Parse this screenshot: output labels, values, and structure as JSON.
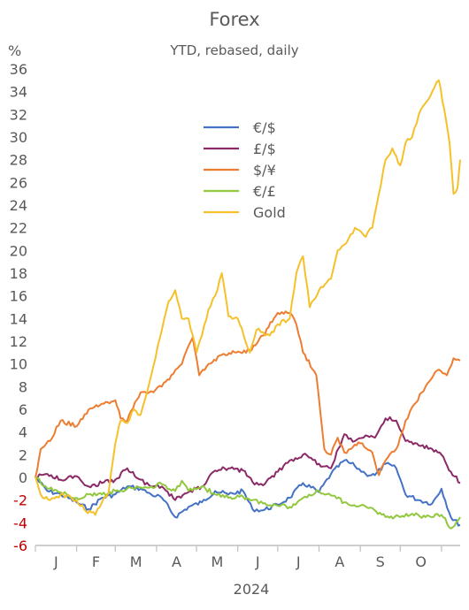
{
  "chart_data": {
    "type": "line",
    "title": "Forex",
    "subtitle": "YTD, rebased, daily",
    "ylabel": "%",
    "xlabel": "2024",
    "ylim": [
      -6,
      36
    ],
    "yticks": [
      -6,
      -4,
      -2,
      0,
      2,
      4,
      6,
      8,
      10,
      12,
      14,
      16,
      18,
      20,
      22,
      24,
      26,
      28,
      30,
      32,
      34,
      36
    ],
    "month_labels": [
      "J",
      "F",
      "M",
      "A",
      "M",
      "J",
      "J",
      "A",
      "S",
      "O"
    ],
    "x_start": "2024-01-01",
    "x_end": "2024-11-15",
    "legend_position": "top-center",
    "grid": false,
    "series": [
      {
        "name": "€/$",
        "color": "#4472c4",
        "points": [
          [
            "2024-01-01",
            0
          ],
          [
            "2024-01-10",
            -1.2
          ],
          [
            "2024-01-20",
            -1.5
          ],
          [
            "2024-02-01",
            -2.2
          ],
          [
            "2024-02-10",
            -2.8
          ],
          [
            "2024-02-20",
            -1.8
          ],
          [
            "2024-03-01",
            -1.5
          ],
          [
            "2024-03-10",
            -0.8
          ],
          [
            "2024-03-20",
            -1.0
          ],
          [
            "2024-03-28",
            -1.5
          ],
          [
            "2024-04-05",
            -1.8
          ],
          [
            "2024-04-15",
            -3.5
          ],
          [
            "2024-04-25",
            -2.6
          ],
          [
            "2024-05-05",
            -2.2
          ],
          [
            "2024-05-15",
            -1.2
          ],
          [
            "2024-05-25",
            -1.5
          ],
          [
            "2024-06-05",
            -1.2
          ],
          [
            "2024-06-12",
            -2.8
          ],
          [
            "2024-06-20",
            -2.9
          ],
          [
            "2024-07-01",
            -2.4
          ],
          [
            "2024-07-10",
            -1.8
          ],
          [
            "2024-07-20",
            -0.5
          ],
          [
            "2024-08-01",
            -1.3
          ],
          [
            "2024-08-10",
            0.3
          ],
          [
            "2024-08-20",
            1.5
          ],
          [
            "2024-08-28",
            1.0
          ],
          [
            "2024-09-05",
            0.3
          ],
          [
            "2024-09-12",
            0.2
          ],
          [
            "2024-09-20",
            1.2
          ],
          [
            "2024-09-28",
            0.8
          ],
          [
            "2024-10-05",
            -1.5
          ],
          [
            "2024-10-15",
            -2.0
          ],
          [
            "2024-10-25",
            -2.3
          ],
          [
            "2024-11-01",
            -1.0
          ],
          [
            "2024-11-08",
            -3.5
          ],
          [
            "2024-11-15",
            -4.2
          ]
        ]
      },
      {
        "name": "£/$",
        "color": "#8b2a67",
        "points": [
          [
            "2024-01-01",
            0
          ],
          [
            "2024-01-10",
            0.3
          ],
          [
            "2024-01-20",
            -0.2
          ],
          [
            "2024-02-01",
            0.1
          ],
          [
            "2024-02-10",
            -0.8
          ],
          [
            "2024-02-20",
            -0.5
          ],
          [
            "2024-03-01",
            -0.2
          ],
          [
            "2024-03-10",
            0.8
          ],
          [
            "2024-03-20",
            -0.2
          ],
          [
            "2024-03-28",
            -0.8
          ],
          [
            "2024-04-05",
            -0.8
          ],
          [
            "2024-04-15",
            -2.0
          ],
          [
            "2024-04-25",
            -1.3
          ],
          [
            "2024-05-05",
            -0.8
          ],
          [
            "2024-05-15",
            0.6
          ],
          [
            "2024-05-25",
            0.8
          ],
          [
            "2024-06-05",
            0.6
          ],
          [
            "2024-06-12",
            -0.4
          ],
          [
            "2024-06-20",
            -0.7
          ],
          [
            "2024-07-01",
            0.5
          ],
          [
            "2024-07-10",
            1.5
          ],
          [
            "2024-07-20",
            2.0
          ],
          [
            "2024-08-01",
            1.2
          ],
          [
            "2024-08-10",
            0.8
          ],
          [
            "2024-08-20",
            3.8
          ],
          [
            "2024-08-28",
            3.2
          ],
          [
            "2024-09-05",
            3.7
          ],
          [
            "2024-09-12",
            3.5
          ],
          [
            "2024-09-20",
            5.2
          ],
          [
            "2024-09-28",
            5.0
          ],
          [
            "2024-10-05",
            3.2
          ],
          [
            "2024-10-15",
            2.8
          ],
          [
            "2024-10-25",
            2.5
          ],
          [
            "2024-11-01",
            2.0
          ],
          [
            "2024-11-08",
            0.5
          ],
          [
            "2024-11-15",
            -0.5
          ]
        ]
      },
      {
        "name": "$/¥",
        "color": "#ed7d31",
        "points": [
          [
            "2024-01-01",
            0
          ],
          [
            "2024-01-05",
            2.5
          ],
          [
            "2024-01-12",
            3.2
          ],
          [
            "2024-01-20",
            5.0
          ],
          [
            "2024-02-01",
            4.5
          ],
          [
            "2024-02-10",
            6.0
          ],
          [
            "2024-02-20",
            6.5
          ],
          [
            "2024-03-01",
            6.8
          ],
          [
            "2024-03-05",
            5.2
          ],
          [
            "2024-03-10",
            5.0
          ],
          [
            "2024-03-20",
            7.5
          ],
          [
            "2024-03-28",
            7.6
          ],
          [
            "2024-04-05",
            8.0
          ],
          [
            "2024-04-12",
            9.0
          ],
          [
            "2024-04-20",
            10.0
          ],
          [
            "2024-04-28",
            12.3
          ],
          [
            "2024-05-03",
            9.0
          ],
          [
            "2024-05-10",
            10.0
          ],
          [
            "2024-05-20",
            10.8
          ],
          [
            "2024-05-31",
            11.0
          ],
          [
            "2024-06-10",
            11.2
          ],
          [
            "2024-06-20",
            12.5
          ],
          [
            "2024-07-01",
            14.5
          ],
          [
            "2024-07-10",
            14.5
          ],
          [
            "2024-07-15",
            13.5
          ],
          [
            "2024-07-20",
            11.0
          ],
          [
            "2024-07-30",
            9.0
          ],
          [
            "2024-08-05",
            2.5
          ],
          [
            "2024-08-10",
            2.0
          ],
          [
            "2024-08-15",
            3.5
          ],
          [
            "2024-08-20",
            2.2
          ],
          [
            "2024-08-25",
            2.5
          ],
          [
            "2024-09-01",
            3.0
          ],
          [
            "2024-09-10",
            2.2
          ],
          [
            "2024-09-15",
            0.2
          ],
          [
            "2024-09-20",
            1.5
          ],
          [
            "2024-09-28",
            2.5
          ],
          [
            "2024-10-05",
            5.0
          ],
          [
            "2024-10-10",
            6.2
          ],
          [
            "2024-10-20",
            8.0
          ],
          [
            "2024-10-30",
            9.5
          ],
          [
            "2024-11-05",
            9.0
          ],
          [
            "2024-11-10",
            10.5
          ],
          [
            "2024-11-15",
            10.3
          ]
        ]
      },
      {
        "name": "€/£",
        "color": "#92c83e",
        "points": [
          [
            "2024-01-01",
            0
          ],
          [
            "2024-01-10",
            -1.0
          ],
          [
            "2024-01-20",
            -1.3
          ],
          [
            "2024-02-01",
            -1.8
          ],
          [
            "2024-02-10",
            -1.5
          ],
          [
            "2024-02-20",
            -1.5
          ],
          [
            "2024-03-01",
            -1.2
          ],
          [
            "2024-03-10",
            -1.0
          ],
          [
            "2024-03-20",
            -0.9
          ],
          [
            "2024-03-28",
            -0.8
          ],
          [
            "2024-04-05",
            -0.6
          ],
          [
            "2024-04-15",
            -1.2
          ],
          [
            "2024-04-20",
            -0.3
          ],
          [
            "2024-04-25",
            -1.2
          ],
          [
            "2024-05-05",
            -0.8
          ],
          [
            "2024-05-15",
            -1.5
          ],
          [
            "2024-05-25",
            -1.8
          ],
          [
            "2024-06-05",
            -1.7
          ],
          [
            "2024-06-12",
            -2.0
          ],
          [
            "2024-06-20",
            -2.3
          ],
          [
            "2024-07-01",
            -2.5
          ],
          [
            "2024-07-10",
            -2.6
          ],
          [
            "2024-07-20",
            -1.8
          ],
          [
            "2024-08-01",
            -1.2
          ],
          [
            "2024-08-10",
            -1.6
          ],
          [
            "2024-08-20",
            -2.2
          ],
          [
            "2024-09-01",
            -2.5
          ],
          [
            "2024-09-10",
            -2.7
          ],
          [
            "2024-09-20",
            -3.5
          ],
          [
            "2024-10-01",
            -3.5
          ],
          [
            "2024-10-10",
            -3.2
          ],
          [
            "2024-10-20",
            -3.5
          ],
          [
            "2024-11-01",
            -3.3
          ],
          [
            "2024-11-08",
            -4.5
          ],
          [
            "2024-11-15",
            -3.5
          ]
        ]
      },
      {
        "name": "Gold",
        "color": "#f5c12b",
        "points": [
          [
            "2024-01-01",
            0
          ],
          [
            "2024-01-05",
            -1.5
          ],
          [
            "2024-01-12",
            -2.0
          ],
          [
            "2024-01-20",
            -1.5
          ],
          [
            "2024-02-01",
            -2.0
          ],
          [
            "2024-02-08",
            -3.0
          ],
          [
            "2024-02-15",
            -3.3
          ],
          [
            "2024-02-20",
            -2.2
          ],
          [
            "2024-02-25",
            -1.3
          ],
          [
            "2024-03-01",
            3.0
          ],
          [
            "2024-03-05",
            5.0
          ],
          [
            "2024-03-10",
            4.8
          ],
          [
            "2024-03-15",
            6.0
          ],
          [
            "2024-03-20",
            5.5
          ],
          [
            "2024-03-28",
            9.0
          ],
          [
            "2024-04-05",
            13.0
          ],
          [
            "2024-04-10",
            15.5
          ],
          [
            "2024-04-15",
            16.5
          ],
          [
            "2024-04-20",
            14.0
          ],
          [
            "2024-04-25",
            14.0
          ],
          [
            "2024-05-01",
            11.0
          ],
          [
            "2024-05-05",
            12.5
          ],
          [
            "2024-05-10",
            14.8
          ],
          [
            "2024-05-15",
            16.0
          ],
          [
            "2024-05-20",
            18.0
          ],
          [
            "2024-05-25",
            14.2
          ],
          [
            "2024-06-01",
            14.0
          ],
          [
            "2024-06-10",
            11.0
          ],
          [
            "2024-06-15",
            13.0
          ],
          [
            "2024-06-20",
            12.8
          ],
          [
            "2024-06-25",
            12.5
          ],
          [
            "2024-07-01",
            13.5
          ],
          [
            "2024-07-10",
            14.0
          ],
          [
            "2024-07-15",
            18.0
          ],
          [
            "2024-07-20",
            19.5
          ],
          [
            "2024-07-25",
            15.0
          ],
          [
            "2024-08-01",
            16.5
          ],
          [
            "2024-08-10",
            17.5
          ],
          [
            "2024-08-15",
            20.0
          ],
          [
            "2024-08-20",
            20.5
          ],
          [
            "2024-08-28",
            22.0
          ],
          [
            "2024-09-05",
            21.2
          ],
          [
            "2024-09-10",
            22.0
          ],
          [
            "2024-09-15",
            25.0
          ],
          [
            "2024-09-20",
            28.0
          ],
          [
            "2024-09-25",
            29.0
          ],
          [
            "2024-10-01",
            27.5
          ],
          [
            "2024-10-05",
            29.5
          ],
          [
            "2024-10-10",
            30.0
          ],
          [
            "2024-10-15",
            32.0
          ],
          [
            "2024-10-20",
            33.0
          ],
          [
            "2024-10-25",
            34.0
          ],
          [
            "2024-10-30",
            35.0
          ],
          [
            "2024-11-03",
            32.5
          ],
          [
            "2024-11-07",
            29.5
          ],
          [
            "2024-11-10",
            25.0
          ],
          [
            "2024-11-13",
            25.5
          ],
          [
            "2024-11-15",
            28.0
          ]
        ]
      }
    ]
  }
}
